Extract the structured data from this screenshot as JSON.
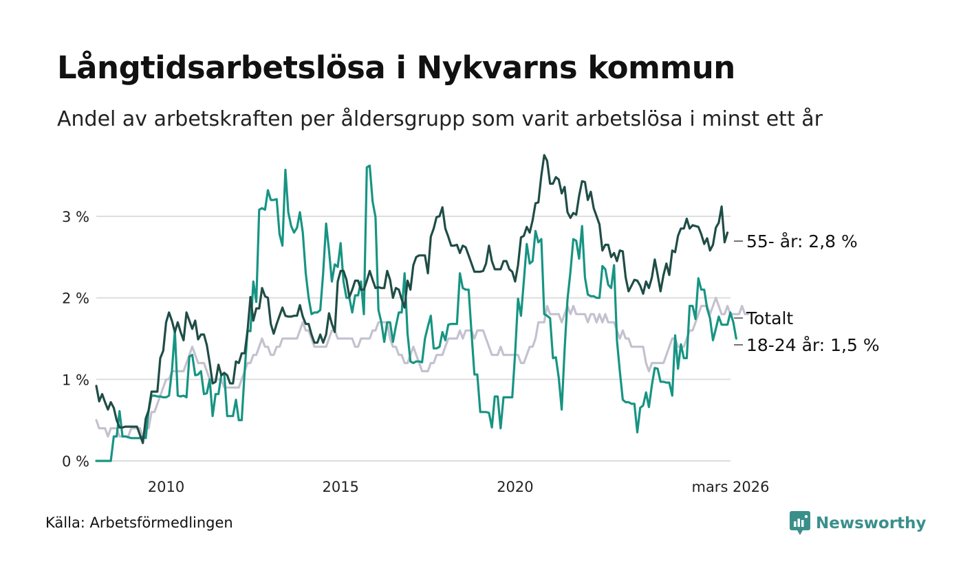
{
  "header": {
    "title": "Långtidsarbetslösa i Nykvarns kommun",
    "subtitle": "Andel av arbetskraften per åldersgrupp som varit arbetslösa i minst ett år"
  },
  "footer": {
    "source": "Källa: Arbetsförmedlingen",
    "brand": "Newsworthy"
  },
  "colors": {
    "age55": "#1f4d46",
    "age18_24": "#179483",
    "total": "#c4c1cf",
    "grid": "#dddddd",
    "brand": "#3a8f8a"
  },
  "chart_data": {
    "type": "line",
    "title": "Långtidsarbetslösa i Nykvarns kommun",
    "xlabel": "",
    "ylabel": "",
    "x_start": 2008.0,
    "x_step": 0.083333,
    "xlim": [
      2008.0,
      2026.17
    ],
    "ylim": [
      0,
      3.9
    ],
    "yticks": [
      {
        "value": 0,
        "label": "0 %"
      },
      {
        "value": 1,
        "label": "1 %"
      },
      {
        "value": 2,
        "label": "2 %"
      },
      {
        "value": 3,
        "label": "3 %"
      }
    ],
    "xticks": [
      {
        "value": 2010,
        "label": "2010"
      },
      {
        "value": 2015,
        "label": "2015"
      },
      {
        "value": 2020,
        "label": "2020"
      },
      {
        "value": 2026.17,
        "label": "mars 2026"
      }
    ],
    "grid": true,
    "series": [
      {
        "name": "55- år",
        "label": "55- år: 2,8 %",
        "color": "#1f4d46",
        "key": "age55",
        "values": [
          0.92,
          0.73,
          0.82,
          0.72,
          0.63,
          0.72,
          0.65,
          0.5,
          0.41,
          0.41,
          0.42,
          0.42,
          0.42,
          0.42,
          0.42,
          0.32,
          0.22,
          0.52,
          0.62,
          0.85,
          0.85,
          0.85,
          1.26,
          1.35,
          1.7,
          1.82,
          1.72,
          1.58,
          1.7,
          1.58,
          1.48,
          1.82,
          1.72,
          1.62,
          1.72,
          1.49,
          1.55,
          1.55,
          1.42,
          1.2,
          0.95,
          0.97,
          1.18,
          1.05,
          1.08,
          1.05,
          0.95,
          0.95,
          1.22,
          1.2,
          1.32,
          1.32,
          1.6,
          2.01,
          1.72,
          1.87,
          1.87,
          2.12,
          2.02,
          2.0,
          1.68,
          1.56,
          1.68,
          1.78,
          1.88,
          1.78,
          1.77,
          1.77,
          1.78,
          1.78,
          1.91,
          1.77,
          1.68,
          1.68,
          1.55,
          1.45,
          1.45,
          1.55,
          1.45,
          1.55,
          1.81,
          1.68,
          1.58,
          2.2,
          2.33,
          2.33,
          2.22,
          2.01,
          2.1,
          2.21,
          2.21,
          2.1,
          2.1,
          2.21,
          2.33,
          2.22,
          2.12,
          2.13,
          2.12,
          2.12,
          2.33,
          2.22,
          2.0,
          2.12,
          2.1,
          1.98,
          1.88,
          2.21,
          2.1,
          2.4,
          2.5,
          2.52,
          2.52,
          2.52,
          2.3,
          2.75,
          2.85,
          2.99,
          3.0,
          3.11,
          2.85,
          2.75,
          2.64,
          2.64,
          2.65,
          2.55,
          2.64,
          2.62,
          2.52,
          2.42,
          2.32,
          2.32,
          2.32,
          2.33,
          2.42,
          2.64,
          2.45,
          2.35,
          2.35,
          2.35,
          2.45,
          2.45,
          2.35,
          2.32,
          2.2,
          2.4,
          2.74,
          2.76,
          2.87,
          2.8,
          2.95,
          3.16,
          3.17,
          3.5,
          3.75,
          3.68,
          3.4,
          3.4,
          3.48,
          3.45,
          3.28,
          3.36,
          3.05,
          2.98,
          3.04,
          3.02,
          3.25,
          3.43,
          3.42,
          3.2,
          3.3,
          3.1,
          3.0,
          2.9,
          2.58,
          2.65,
          2.65,
          2.5,
          2.55,
          2.45,
          2.58,
          2.57,
          2.25,
          2.08,
          2.15,
          2.22,
          2.21,
          2.15,
          2.05,
          2.2,
          2.12,
          2.25,
          2.47,
          2.28,
          2.08,
          2.28,
          2.42,
          2.28,
          2.58,
          2.56,
          2.76,
          2.85,
          2.85,
          2.97,
          2.85,
          2.89,
          2.88,
          2.87,
          2.78,
          2.66,
          2.73,
          2.58,
          2.65,
          2.86,
          2.92,
          3.12,
          2.68,
          2.8
        ]
      },
      {
        "name": "Totalt",
        "label": "Totalt",
        "color": "#c4c1cf",
        "key": "total",
        "values": [
          0.5,
          0.4,
          0.4,
          0.4,
          0.3,
          0.4,
          0.4,
          0.4,
          0.3,
          0.3,
          0.3,
          0.3,
          0.4,
          0.4,
          0.4,
          0.4,
          0.3,
          0.4,
          0.4,
          0.6,
          0.6,
          0.7,
          0.8,
          0.9,
          1.0,
          1.0,
          1.1,
          1.1,
          1.1,
          1.1,
          1.1,
          1.2,
          1.3,
          1.4,
          1.3,
          1.2,
          1.2,
          1.2,
          1.1,
          1.0,
          1.0,
          1.0,
          1.0,
          1.0,
          0.9,
          0.9,
          0.9,
          0.9,
          0.9,
          0.9,
          1.0,
          1.1,
          1.2,
          1.2,
          1.3,
          1.3,
          1.4,
          1.5,
          1.4,
          1.4,
          1.3,
          1.3,
          1.4,
          1.4,
          1.5,
          1.5,
          1.5,
          1.5,
          1.5,
          1.5,
          1.6,
          1.7,
          1.6,
          1.6,
          1.5,
          1.4,
          1.4,
          1.4,
          1.4,
          1.4,
          1.5,
          1.6,
          1.6,
          1.5,
          1.5,
          1.5,
          1.5,
          1.5,
          1.5,
          1.4,
          1.4,
          1.5,
          1.5,
          1.5,
          1.5,
          1.6,
          1.6,
          1.7,
          1.7,
          1.7,
          1.7,
          1.5,
          1.4,
          1.4,
          1.3,
          1.3,
          1.2,
          1.2,
          1.3,
          1.4,
          1.3,
          1.2,
          1.1,
          1.1,
          1.1,
          1.2,
          1.2,
          1.3,
          1.3,
          1.3,
          1.4,
          1.5,
          1.5,
          1.5,
          1.5,
          1.6,
          1.5,
          1.6,
          1.6,
          1.6,
          1.5,
          1.6,
          1.6,
          1.6,
          1.5,
          1.4,
          1.3,
          1.3,
          1.3,
          1.4,
          1.3,
          1.3,
          1.3,
          1.3,
          1.3,
          1.3,
          1.2,
          1.2,
          1.3,
          1.4,
          1.4,
          1.5,
          1.7,
          1.7,
          1.7,
          1.9,
          1.8,
          1.8,
          1.8,
          1.8,
          1.7,
          1.8,
          1.9,
          1.8,
          1.9,
          1.8,
          1.8,
          1.8,
          1.8,
          1.7,
          1.8,
          1.8,
          1.7,
          1.8,
          1.7,
          1.8,
          1.7,
          1.7,
          1.7,
          1.6,
          1.5,
          1.6,
          1.5,
          1.5,
          1.4,
          1.4,
          1.4,
          1.4,
          1.4,
          1.2,
          1.1,
          1.2,
          1.2,
          1.2,
          1.2,
          1.2,
          1.3,
          1.4,
          1.5,
          1.5,
          1.4,
          1.4,
          1.4,
          1.5,
          1.6,
          1.6,
          1.7,
          1.8,
          1.9,
          1.9,
          1.9,
          1.8,
          1.9,
          2.0,
          1.9,
          1.8,
          1.8,
          1.9,
          1.8,
          1.8,
          1.8,
          1.8,
          1.9,
          1.8,
          1.8
        ]
      },
      {
        "name": "18-24 år",
        "label": "18-24 år: 1,5 %",
        "color": "#179483",
        "key": "age18_24",
        "values": [
          0.0,
          0.0,
          0.0,
          0.0,
          0.0,
          0.0,
          0.3,
          0.3,
          0.61,
          0.3,
          0.3,
          0.29,
          0.28,
          0.28,
          0.28,
          0.28,
          0.3,
          0.28,
          0.62,
          0.8,
          0.8,
          0.79,
          0.79,
          0.78,
          0.78,
          0.8,
          1.1,
          1.6,
          0.8,
          0.79,
          0.8,
          0.78,
          1.28,
          1.3,
          1.05,
          1.06,
          1.1,
          0.82,
          0.83,
          1.0,
          0.55,
          0.82,
          0.82,
          1.06,
          1.06,
          0.55,
          0.55,
          0.55,
          0.75,
          0.5,
          0.5,
          1.1,
          1.6,
          1.59,
          2.2,
          1.95,
          3.08,
          3.1,
          3.08,
          3.32,
          3.2,
          3.2,
          3.21,
          2.78,
          2.64,
          3.57,
          3.05,
          2.88,
          2.8,
          2.86,
          3.05,
          2.8,
          2.3,
          2.0,
          1.8,
          1.82,
          1.82,
          1.85,
          2.3,
          2.91,
          2.58,
          2.2,
          2.41,
          2.38,
          2.67,
          2.2,
          2.0,
          2.0,
          1.82,
          2.03,
          2.03,
          2.2,
          1.8,
          3.6,
          3.62,
          3.18,
          2.99,
          1.85,
          1.7,
          1.46,
          1.7,
          1.7,
          1.46,
          1.65,
          1.82,
          1.82,
          2.3,
          1.56,
          1.22,
          1.2,
          1.22,
          1.22,
          1.21,
          1.5,
          1.65,
          1.78,
          1.38,
          1.38,
          1.4,
          1.58,
          1.48,
          1.67,
          1.68,
          1.68,
          1.68,
          2.3,
          2.12,
          2.1,
          2.1,
          1.57,
          1.06,
          1.06,
          0.6,
          0.6,
          0.6,
          0.59,
          0.41,
          0.79,
          0.79,
          0.4,
          0.78,
          0.78,
          0.78,
          0.78,
          1.32,
          1.99,
          1.78,
          2.21,
          2.66,
          2.42,
          2.45,
          2.82,
          2.68,
          2.72,
          1.8,
          1.78,
          1.75,
          1.26,
          1.27,
          1.02,
          0.63,
          1.36,
          1.98,
          2.32,
          2.72,
          2.7,
          2.48,
          2.88,
          2.25,
          2.04,
          2.02,
          2.02,
          2.0,
          2.0,
          2.39,
          2.35,
          2.16,
          2.12,
          2.4,
          1.48,
          1.1,
          0.75,
          0.72,
          0.72,
          0.7,
          0.7,
          0.35,
          0.65,
          0.68,
          0.84,
          0.66,
          0.93,
          1.14,
          1.13,
          0.97,
          0.97,
          0.96,
          0.96,
          0.8,
          1.54,
          1.13,
          1.43,
          1.26,
          1.26,
          1.9,
          1.9,
          1.74,
          2.24,
          2.1,
          2.1,
          1.87,
          1.75,
          1.48,
          1.62,
          1.77,
          1.67,
          1.67,
          1.67,
          1.82,
          1.7,
          1.5
        ]
      }
    ]
  }
}
